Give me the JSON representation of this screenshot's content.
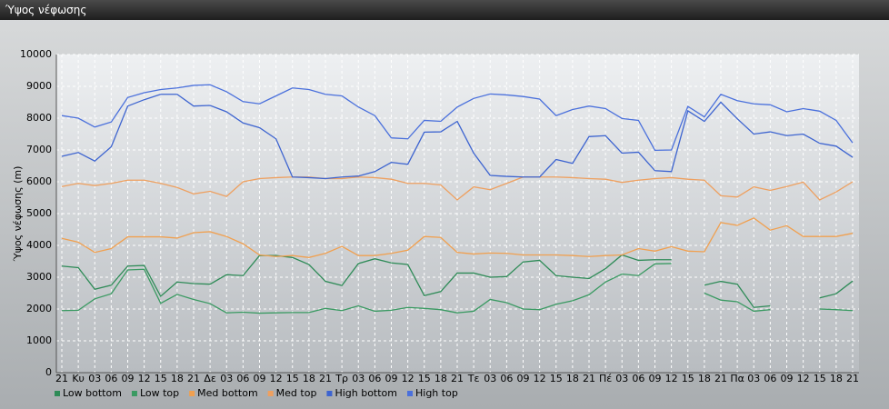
{
  "chart_data": {
    "type": "line",
    "title": "Ύψος νέφωσης",
    "y_label": "Ύψος νέφωσης (m)",
    "categories": [
      "21",
      "Κυ",
      "03",
      "06",
      "09",
      "12",
      "15",
      "18",
      "21",
      "Δε",
      "03",
      "06",
      "09",
      "12",
      "15",
      "18",
      "21",
      "Τρ",
      "03",
      "06",
      "09",
      "12",
      "15",
      "18",
      "21",
      "Τε",
      "03",
      "06",
      "09",
      "12",
      "15",
      "18",
      "21",
      "Πέ",
      "03",
      "06",
      "09",
      "12",
      "15",
      "18",
      "21",
      "Πα",
      "03",
      "06",
      "09",
      "12",
      "15",
      "18",
      "21"
    ],
    "ylim": [
      0,
      10000
    ],
    "yticks": [
      0,
      1000,
      2000,
      3000,
      4000,
      5000,
      6000,
      7000,
      8000,
      9000,
      10000
    ],
    "grid": true,
    "legend": "bottom-left",
    "series": [
      {
        "name": "Low bottom",
        "color": "#2e8b57",
        "values": [
          3350,
          3300,
          2620,
          2750,
          3350,
          3370,
          2400,
          2850,
          2800,
          2780,
          3080,
          3050,
          3680,
          3680,
          3620,
          3400,
          2870,
          2740,
          3430,
          3580,
          3450,
          3400,
          2420,
          2550,
          3130,
          3130,
          3000,
          3020,
          3480,
          3530,
          3050,
          3000,
          2960,
          3270,
          3700,
          3530,
          3550,
          3550,
          null,
          2750,
          2870,
          2780,
          2050,
          2100,
          null,
          null,
          2350,
          2480,
          2880
        ]
      },
      {
        "name": "Low top",
        "color": "#3a9a62",
        "values": [
          1950,
          1960,
          2320,
          2480,
          3230,
          3250,
          2180,
          2460,
          2300,
          2170,
          1880,
          1900,
          1870,
          1880,
          1890,
          1890,
          2020,
          1950,
          2100,
          1930,
          1960,
          2050,
          2020,
          1980,
          1880,
          1930,
          2300,
          2200,
          2000,
          1980,
          2150,
          2260,
          2450,
          2850,
          3100,
          3050,
          3420,
          3430,
          null,
          2500,
          2280,
          2230,
          1930,
          1980,
          null,
          null,
          2000,
          1980,
          1950
        ]
      },
      {
        "name": "Med bottom",
        "color": "#f0a050",
        "values": [
          4220,
          4100,
          3780,
          3900,
          4270,
          4270,
          4270,
          4230,
          4400,
          4430,
          4280,
          4050,
          3700,
          3650,
          3680,
          3620,
          3750,
          3970,
          3680,
          3680,
          3750,
          3850,
          4280,
          4250,
          3780,
          3730,
          3760,
          3750,
          3700,
          3700,
          3700,
          3680,
          3650,
          3680,
          3700,
          3900,
          3820,
          3960,
          3820,
          3800,
          4720,
          4630,
          4860,
          4480,
          4620,
          4280,
          4280,
          4280,
          4380
        ]
      },
      {
        "name": "Med top",
        "color": "#eea060",
        "values": [
          5850,
          5950,
          5880,
          5950,
          6050,
          6050,
          5950,
          5820,
          5620,
          5700,
          5540,
          6000,
          6100,
          6130,
          6150,
          6150,
          6100,
          6100,
          6150,
          6130,
          6080,
          5950,
          5950,
          5900,
          5430,
          5840,
          5750,
          5950,
          6150,
          6150,
          6150,
          6130,
          6100,
          6080,
          5980,
          6050,
          6100,
          6130,
          6080,
          6050,
          5560,
          5520,
          5840,
          5730,
          5850,
          5990,
          5430,
          5680,
          6000
        ]
      },
      {
        "name": "High bottom",
        "color": "#3d64d0",
        "values": [
          6800,
          6920,
          6650,
          7100,
          8380,
          8580,
          8750,
          8750,
          8380,
          8400,
          8200,
          7850,
          7700,
          7350,
          6150,
          6130,
          6100,
          6150,
          6180,
          6320,
          6610,
          6550,
          7560,
          7570,
          7900,
          6900,
          6200,
          6170,
          6150,
          6150,
          6700,
          6580,
          7420,
          7450,
          6900,
          6930,
          6350,
          6320,
          8230,
          7900,
          8500,
          7980,
          7500,
          7570,
          7450,
          7500,
          7210,
          7120,
          6770
        ]
      },
      {
        "name": "High top",
        "color": "#4a70dc",
        "values": [
          8080,
          8000,
          7720,
          7880,
          8650,
          8800,
          8900,
          8950,
          9030,
          9050,
          8830,
          8520,
          8450,
          8700,
          8950,
          8900,
          8750,
          8700,
          8350,
          8080,
          7380,
          7350,
          7930,
          7900,
          8350,
          8620,
          8760,
          8730,
          8680,
          8600,
          8080,
          8270,
          8380,
          8300,
          7990,
          7930,
          6990,
          7000,
          8370,
          8040,
          8750,
          8550,
          8450,
          8420,
          8200,
          8300,
          8220,
          7930,
          7220
        ]
      }
    ]
  }
}
